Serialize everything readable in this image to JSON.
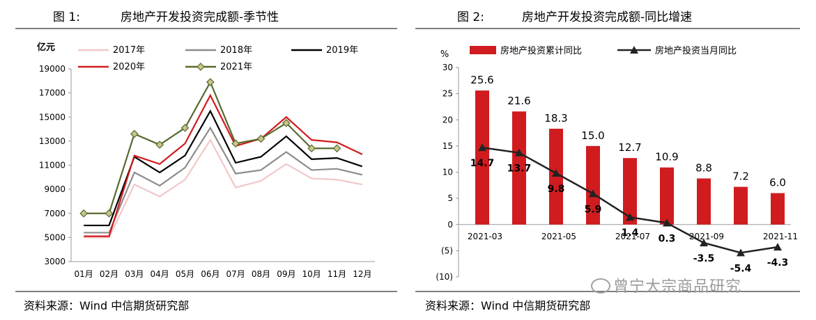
{
  "chart1": {
    "title_num": "图 1:",
    "title": "房地产开发投资完成额-季节性",
    "source": "资料来源：Wind  中信期货研究部",
    "chart_data": {
      "type": "line",
      "ylabel": "亿元",
      "categories": [
        "01月",
        "02月",
        "03月",
        "04月",
        "05月",
        "06月",
        "07月",
        "08月",
        "09月",
        "10月",
        "11月",
        "12月"
      ],
      "ylim": [
        3000,
        19000
      ],
      "yticks": [
        3000,
        5000,
        7000,
        9000,
        11000,
        13000,
        15000,
        17000,
        19000
      ],
      "legend_position": "top",
      "series": [
        {
          "name": "2017年",
          "color": "#f2c7c7",
          "values": [
            5000,
            5000,
            9400,
            8400,
            9800,
            13100,
            9150,
            9700,
            11100,
            9900,
            9800,
            9400
          ]
        },
        {
          "name": "2018年",
          "color": "#8c8c8c",
          "values": [
            5400,
            5400,
            10400,
            9300,
            10800,
            14100,
            10300,
            10600,
            12100,
            10600,
            10700,
            10200
          ]
        },
        {
          "name": "2019年",
          "color": "#000000",
          "values": [
            6000,
            6000,
            11700,
            10400,
            11800,
            15500,
            11200,
            11700,
            13400,
            11500,
            11600,
            10900
          ]
        },
        {
          "name": "2020年",
          "color": "#d01c1f",
          "values": [
            5100,
            5100,
            11800,
            11100,
            12800,
            16800,
            12600,
            13200,
            15000,
            13100,
            12900,
            11900
          ]
        },
        {
          "name": "2021年",
          "color": "#556b2f",
          "marker": "diamond",
          "values": [
            7000,
            7000,
            13600,
            12700,
            14100,
            17900,
            12800,
            13200,
            14500,
            12400,
            12400,
            null
          ]
        }
      ]
    }
  },
  "chart2": {
    "title_num": "图 2:",
    "title": "房地产开发投资完成额-同比增速",
    "source": "资料来源：Wind  中信期货研究部",
    "watermark": "曾宁大宗商品研究",
    "chart_data": {
      "type": "bar",
      "ylabel": "%",
      "ylim": [
        -10,
        30
      ],
      "yticks": [
        -10,
        -5,
        0,
        5,
        10,
        15,
        20,
        25,
        30
      ],
      "ytick_labels": [
        "(10)",
        "(5)",
        "0",
        "5",
        "10",
        "15",
        "20",
        "25",
        "30"
      ],
      "x_tick_labels": [
        {
          "index": 0,
          "label": "2021-03"
        },
        {
          "index": 2,
          "label": "2021-05"
        },
        {
          "index": 4,
          "label": "2021-07"
        },
        {
          "index": 6,
          "label": "2021-09"
        },
        {
          "index": 8,
          "label": "2021-11"
        }
      ],
      "categories": [
        "2021-03",
        "2021-04",
        "2021-05",
        "2021-06",
        "2021-07",
        "2021-08",
        "2021-09",
        "2021-10",
        "2021-11"
      ],
      "legend_position": "top",
      "series": [
        {
          "name": "房地产投资累计同比",
          "type": "bar",
          "color": "#d01c1f",
          "values": [
            25.6,
            21.6,
            18.3,
            15.0,
            12.7,
            10.9,
            8.8,
            7.2,
            6.0
          ],
          "labels": [
            "25.6",
            "21.6",
            "18.3",
            "15.0",
            "12.7",
            "10.9",
            "8.8",
            "7.2",
            "6.0"
          ]
        },
        {
          "name": "房地产投资当月同比",
          "type": "line",
          "color": "#222222",
          "marker": "triangle",
          "values": [
            14.7,
            13.7,
            9.8,
            5.9,
            1.4,
            0.3,
            -3.5,
            -5.4,
            -4.3
          ],
          "labels": [
            "14.7",
            "13.7",
            "9.8",
            "5.9",
            "1.4",
            "0.3",
            "-3.5",
            "-5.4",
            "-4.3"
          ]
        }
      ]
    }
  }
}
